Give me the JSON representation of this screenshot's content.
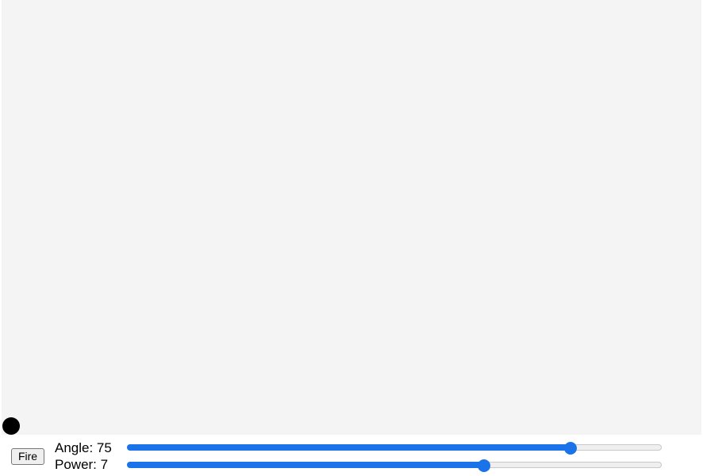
{
  "controls": {
    "fire_label": "Fire",
    "angle": {
      "label": "Angle: 75",
      "value": 75,
      "fraction": 0.83
    },
    "power": {
      "label": "Power: 7",
      "value": 7,
      "fraction": 0.667
    }
  },
  "colors": {
    "canvas_background": "#f4f4f4",
    "projectile": "#000000",
    "slider_accent": "#1a73e8"
  }
}
